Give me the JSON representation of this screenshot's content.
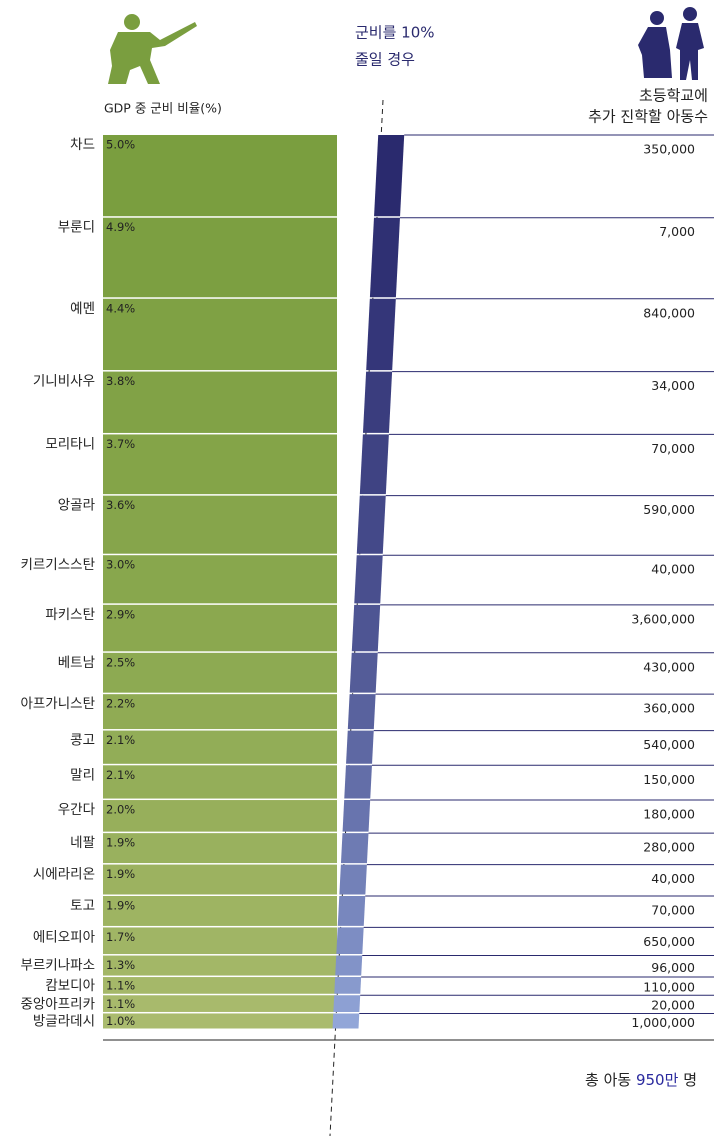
{
  "chart_data": {
    "type": "bar",
    "annotation": [
      "군비를 10%",
      "줄일 경우"
    ],
    "left_label": "GDP 중 군비 비율(%)",
    "right_label": [
      "초등학교에",
      "추가 진학할 아동수"
    ],
    "total": {
      "prefix": "총 아동",
      "value": "950만",
      "suffix": "명"
    },
    "categories": [
      "차드",
      "부룬디",
      "예멘",
      "기니비사우",
      "모리타니",
      "앙골라",
      "키르기스스탄",
      "파키스탄",
      "베트남",
      "아프가니스탄",
      "콩고",
      "말리",
      "우간다",
      "네팔",
      "시에라리온",
      "토고",
      "에티오피아",
      "부르키나파소",
      "캄보디아",
      "중앙아프리카",
      "방글라데시"
    ],
    "series": [
      {
        "name": "GDP 중 군비 비율(%)",
        "color": "#7a9e3f",
        "values": [
          5.0,
          4.9,
          4.4,
          3.8,
          3.7,
          3.6,
          3.0,
          2.9,
          2.5,
          2.2,
          2.1,
          2.1,
          2.0,
          1.9,
          1.9,
          1.9,
          1.7,
          1.3,
          1.1,
          1.1,
          1.0
        ],
        "value_labels": [
          "5.0%",
          "4.9%",
          "4.4%",
          "3.8%",
          "3.7%",
          "3.6%",
          "3.0%",
          "2.9%",
          "2.5%",
          "2.2%",
          "2.1%",
          "2.1%",
          "2.0%",
          "1.9%",
          "1.9%",
          "1.9%",
          "1.7%",
          "1.3%",
          "1.1%",
          "1.1%",
          "1.0%"
        ]
      },
      {
        "name": "초등학교에 추가 진학할 아동수",
        "color": "#2a2a6e",
        "values": [
          350000,
          7000,
          840000,
          34000,
          70000,
          590000,
          40000,
          3600000,
          430000,
          360000,
          540000,
          150000,
          180000,
          280000,
          40000,
          70000,
          650000,
          96000,
          110000,
          20000,
          1000000
        ],
        "value_labels": [
          "350,000",
          "7,000",
          "840,000",
          "34,000",
          "70,000",
          "590,000",
          "40,000",
          "3,600,000",
          "430,000",
          "360,000",
          "540,000",
          "150,000",
          "180,000",
          "280,000",
          "40,000",
          "70,000",
          "650,000",
          "96,000",
          "110,000",
          "20,000",
          "1,000,000"
        ]
      }
    ]
  }
}
